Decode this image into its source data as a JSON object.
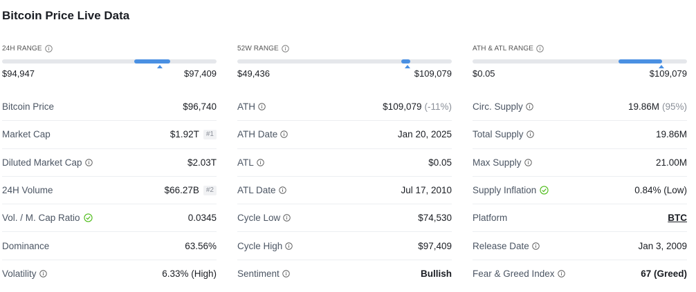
{
  "title": "Bitcoin Price Live Data",
  "ranges": [
    {
      "label": "24H RANGE",
      "low": "$94,947",
      "high": "$97,409",
      "fill_start_pct": 61.5,
      "fill_end_pct": 78.5,
      "marker_pct": 73.5
    },
    {
      "label": "52W RANGE",
      "low": "$49,436",
      "high": "$109,079",
      "fill_start_pct": 76.5,
      "fill_end_pct": 80.5,
      "marker_pct": 79.5
    },
    {
      "label": "ATH & ATL RANGE",
      "low": "$0.05",
      "high": "$109,079",
      "fill_start_pct": 68.0,
      "fill_end_pct": 88.5,
      "marker_pct": 88.0
    }
  ],
  "col1": {
    "bitcoin_price_label": "Bitcoin Price",
    "bitcoin_price": "$96,740",
    "market_cap_label": "Market Cap",
    "market_cap": "$1.92T",
    "market_cap_rank": "#1",
    "diluted_label": "Diluted Market Cap",
    "diluted": "$2.03T",
    "volume_label": "24H Volume",
    "volume": "$66.27B",
    "volume_rank": "#2",
    "vol_ratio_label": "Vol. / M. Cap Ratio",
    "vol_ratio": "0.0345",
    "dominance_label": "Dominance",
    "dominance": "63.56%",
    "volatility_label": "Volatility",
    "volatility": "6.33% (High)"
  },
  "col2": {
    "ath_label": "ATH",
    "ath": "$109,079",
    "ath_change": "(-11%)",
    "ath_date_label": "ATH Date",
    "ath_date": "Jan 20, 2025",
    "atl_label": "ATL",
    "atl": "$0.05",
    "atl_date_label": "ATL Date",
    "atl_date": "Jul 17, 2010",
    "cycle_low_label": "Cycle Low",
    "cycle_low": "$74,530",
    "cycle_high_label": "Cycle High",
    "cycle_high": "$97,409",
    "sentiment_label": "Sentiment",
    "sentiment": "Bullish"
  },
  "col3": {
    "circ_label": "Circ. Supply",
    "circ": "19.86M",
    "circ_pct": "(95%)",
    "total_label": "Total Supply",
    "total": "19.86M",
    "max_label": "Max Supply",
    "max": "21.00M",
    "inflation_label": "Supply Inflation",
    "inflation": "0.84% (Low)",
    "platform_label": "Platform",
    "platform": "BTC",
    "release_label": "Release Date",
    "release": "Jan 3, 2009",
    "fng_label": "Fear & Greed Index",
    "fng": "67 (Greed)"
  },
  "colors": {
    "accent": "#4a90e2",
    "red": "#e5364b",
    "green": "#4cbb17"
  },
  "icons": {
    "info": "info-circle-icon",
    "check": "check-circle-icon"
  }
}
